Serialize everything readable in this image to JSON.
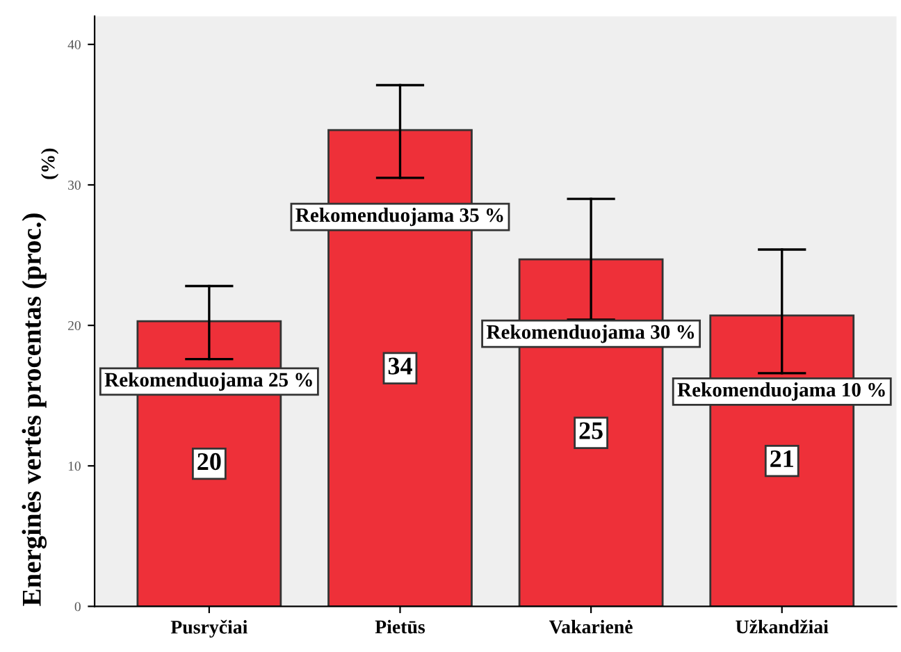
{
  "chart_data": {
    "type": "bar",
    "ylabel": "(%)",
    "categories": [
      "Pusryčiai",
      "Pietūs",
      "Vakarienė",
      "Užkandžiai"
    ],
    "values": [
      20.3,
      33.9,
      24.7,
      20.7
    ],
    "errors": [
      [
        17.6,
        22.8
      ],
      [
        30.5,
        37.1
      ],
      [
        20.4,
        29.0
      ],
      [
        16.6,
        25.4
      ]
    ],
    "value_labels": [
      "20",
      "34",
      "25",
      "21"
    ],
    "color": "#ee3039",
    "ylim": [
      0,
      42
    ],
    "yticks": [
      0,
      10,
      20,
      30,
      40
    ],
    "annotations": [
      "Rekomenduojama 25 %",
      "Rekomenduojama 35 %",
      "Rekomenduojama 30 %",
      "Rekomenduojama 10 %",
      "Energinės vertės procentas (proc.)"
    ],
    "grid": false
  }
}
